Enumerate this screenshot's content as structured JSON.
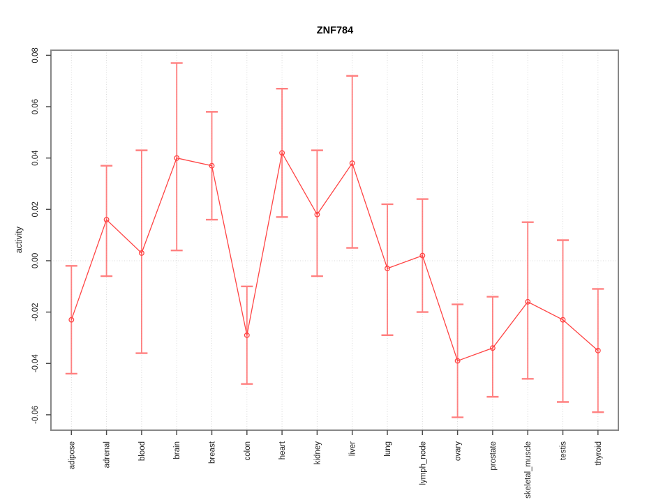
{
  "chart_data": {
    "type": "line",
    "title": "ZNF784",
    "ylabel": "activity",
    "xlabel": "",
    "categories": [
      "adipose",
      "adrenal",
      "blood",
      "brain",
      "breast",
      "colon",
      "heart",
      "kidney",
      "liver",
      "lung",
      "lymph_node",
      "ovary",
      "prostate",
      "skeletal_muscle",
      "testis",
      "thyroid"
    ],
    "series": [
      {
        "name": "activity",
        "values": [
          -0.023,
          0.016,
          0.003,
          0.04,
          0.037,
          -0.029,
          0.042,
          0.018,
          0.038,
          -0.003,
          0.002,
          -0.039,
          -0.034,
          -0.016,
          -0.023,
          -0.035
        ],
        "ci_low": [
          -0.044,
          -0.006,
          -0.036,
          0.004,
          0.016,
          -0.048,
          0.017,
          -0.006,
          0.005,
          -0.029,
          -0.02,
          -0.061,
          -0.053,
          -0.046,
          -0.055,
          -0.059
        ],
        "ci_high": [
          -0.002,
          0.037,
          0.043,
          0.077,
          0.058,
          -0.01,
          0.067,
          0.043,
          0.072,
          0.022,
          0.024,
          -0.017,
          -0.014,
          0.015,
          0.008,
          -0.011
        ]
      }
    ],
    "yticks": [
      -0.06,
      -0.04,
      -0.02,
      0.0,
      0.02,
      0.04,
      0.06,
      0.08
    ],
    "ylim": [
      -0.066,
      0.082
    ],
    "grid": {
      "vertical_gridlines": "dotted",
      "zero_line": "dotted",
      "horizontal_gridlines": "off"
    },
    "legend": "none",
    "marker": "open-circle",
    "error_bars": true,
    "colors": {
      "series": "#ff4444",
      "error_bar": "#ff6e6e",
      "error_cap": "#ff8080",
      "grid": "#d9d9d9",
      "box": "#878787",
      "tick": "#4d4d4d",
      "text": "#1f1f1f",
      "title": "#000000",
      "background": "#ffffff"
    }
  }
}
